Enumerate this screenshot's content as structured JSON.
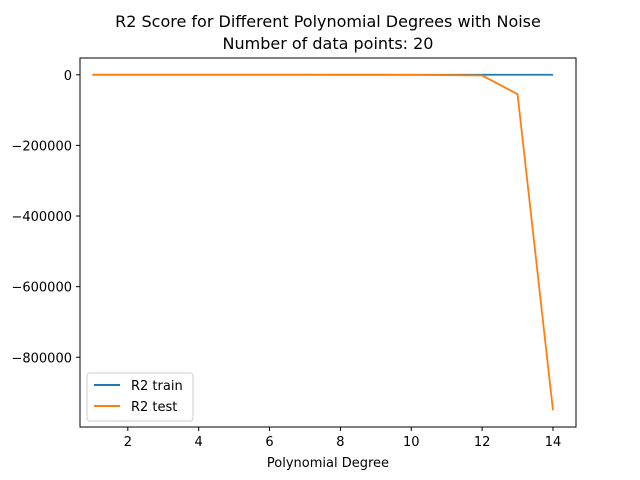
{
  "chart_data": {
    "type": "line",
    "title": "R2 Score for Different Polynomial Degrees with Noise",
    "subtitle": "Number of data points: 20",
    "xlabel": "Polynomial Degree",
    "ylabel": "",
    "x": [
      1,
      2,
      3,
      4,
      5,
      6,
      7,
      8,
      9,
      10,
      11,
      12,
      13,
      14
    ],
    "xlim": [
      0.65,
      14.65
    ],
    "ylim": [
      -997500,
      47500
    ],
    "xticks": [
      2,
      4,
      6,
      8,
      10,
      12,
      14
    ],
    "xtick_labels": [
      "2",
      "4",
      "6",
      "8",
      "10",
      "12",
      "14"
    ],
    "yticks": [
      0,
      -200000,
      -400000,
      -600000,
      -800000
    ],
    "ytick_labels": [
      "0",
      "−200000",
      "−400000",
      "−600000",
      "−800000"
    ],
    "grid": false,
    "legend_position": "bottom-left",
    "series": [
      {
        "name": "R2 train",
        "color": "#1f77b4",
        "values": [
          0.2,
          0.4,
          0.5,
          0.6,
          0.7,
          0.75,
          0.8,
          0.85,
          0.88,
          0.9,
          0.92,
          0.95,
          0.97,
          0.99
        ]
      },
      {
        "name": "R2 test",
        "color": "#ff7f0e",
        "values": [
          0.1,
          -0.5,
          -1,
          -2,
          -5,
          -10,
          -20,
          -50,
          -100,
          -300,
          -800,
          -2000,
          -55000,
          -950000
        ]
      }
    ]
  }
}
